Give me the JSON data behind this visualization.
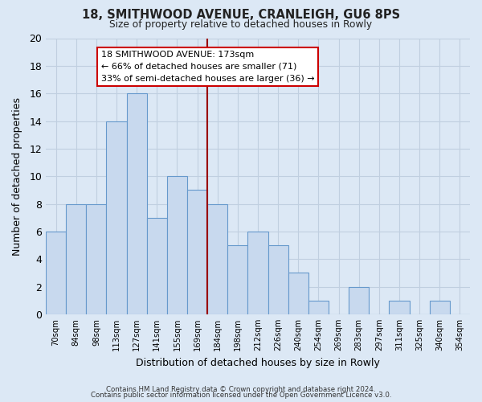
{
  "title": "18, SMITHWOOD AVENUE, CRANLEIGH, GU6 8PS",
  "subtitle": "Size of property relative to detached houses in Rowly",
  "xlabel": "Distribution of detached houses by size in Rowly",
  "ylabel": "Number of detached properties",
  "bar_labels": [
    "70sqm",
    "84sqm",
    "98sqm",
    "113sqm",
    "127sqm",
    "141sqm",
    "155sqm",
    "169sqm",
    "184sqm",
    "198sqm",
    "212sqm",
    "226sqm",
    "240sqm",
    "254sqm",
    "269sqm",
    "283sqm",
    "297sqm",
    "311sqm",
    "325sqm",
    "340sqm",
    "354sqm"
  ],
  "bar_values": [
    6,
    8,
    8,
    14,
    16,
    7,
    10,
    9,
    8,
    5,
    6,
    5,
    3,
    1,
    0,
    2,
    0,
    1,
    0,
    1,
    0
  ],
  "bar_fill_color": "#c8d9ee",
  "bar_edge_color": "#6699cc",
  "grid_color": "#c0cfe0",
  "background_color": "#dce8f5",
  "vline_color": "#990000",
  "vline_x_index": 7.5,
  "annotation_title": "18 SMITHWOOD AVENUE: 173sqm",
  "annotation_line1": "← 66% of detached houses are smaller (71)",
  "annotation_line2": "33% of semi-detached houses are larger (36) →",
  "annotation_box_color": "#ffffff",
  "annotation_box_edge": "#cc0000",
  "ylim": [
    0,
    20
  ],
  "yticks": [
    0,
    2,
    4,
    6,
    8,
    10,
    12,
    14,
    16,
    18,
    20
  ],
  "footer_line1": "Contains HM Land Registry data © Crown copyright and database right 2024.",
  "footer_line2": "Contains public sector information licensed under the Open Government Licence v3.0."
}
